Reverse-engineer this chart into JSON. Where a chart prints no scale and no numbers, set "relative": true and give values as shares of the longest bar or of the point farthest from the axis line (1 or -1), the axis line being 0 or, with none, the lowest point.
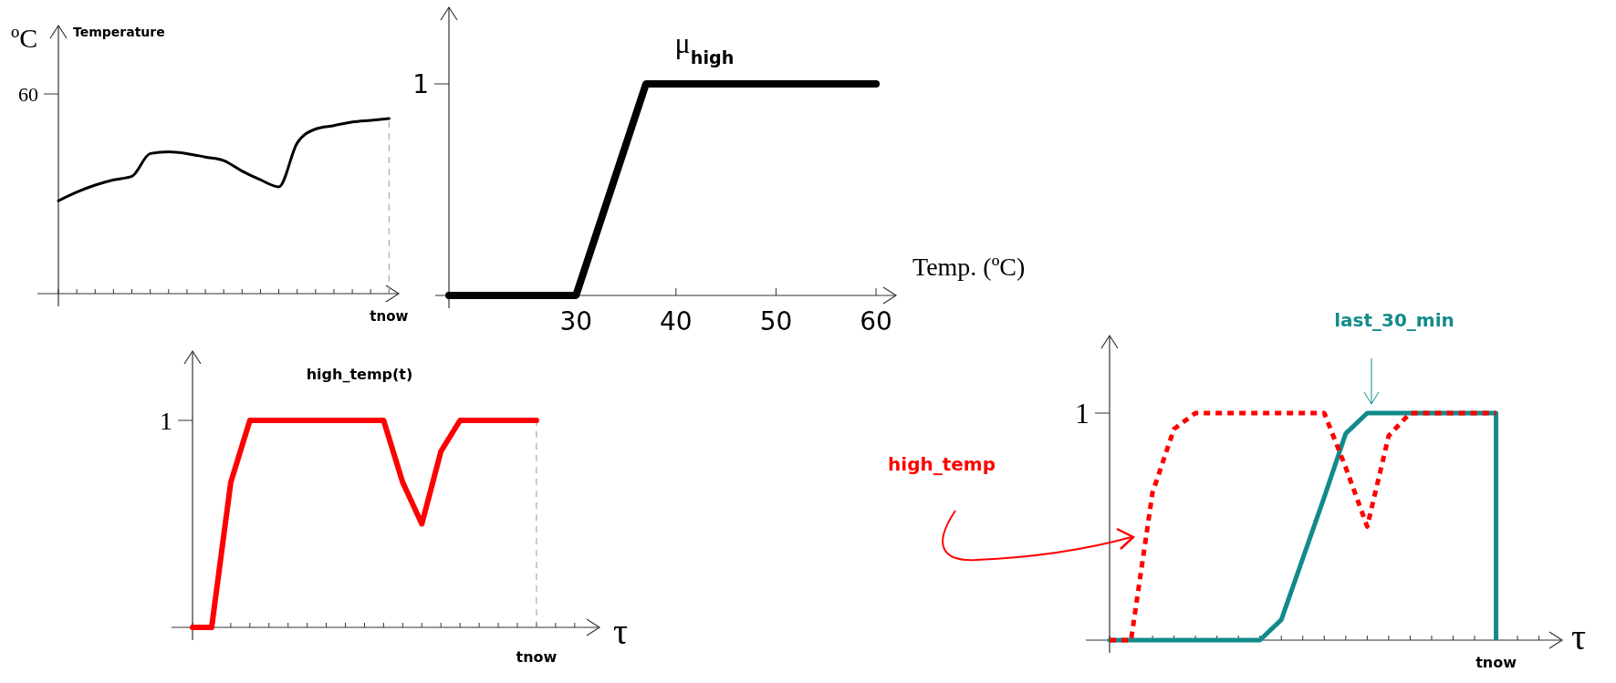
{
  "chart_data": [
    {
      "type": "line",
      "title": "Temperature",
      "ylabel": "ºC",
      "relative": true,
      "categories": [
        null,
        null,
        null,
        null,
        null,
        null,
        null,
        null,
        null,
        null,
        null,
        null,
        null,
        null,
        null,
        null,
        null,
        null,
        null
      ],
      "annotations": [
        "60"
      ],
      "ref_lines": [
        {
          "axis": "x",
          "label": "tnow",
          "color": "#999999",
          "line_style": "dotted"
        }
      ],
      "series": [
        {
          "color": "#000000",
          "values": [
            0.53,
            0.58,
            0.62,
            0.65,
            0.67,
            0.8,
            0.81,
            0.8,
            0.78,
            0.76,
            0.7,
            0.65,
            0.61,
            0.86,
            0.94,
            0.96,
            0.98,
            0.99,
            1
          ]
        }
      ]
    },
    {
      "type": "line",
      "title": "μ$_{high}$",
      "xlabel": "Temp. (ºC)",
      "relative": true,
      "xlim": [
        17.3,
        62
      ],
      "xticks": [
        30,
        40,
        50,
        60
      ],
      "annotations": [
        "1"
      ],
      "series": [
        {
          "color": "#000000",
          "x": [
            17.3,
            30,
            37,
            60
          ],
          "values": [
            0,
            0,
            1,
            1
          ]
        }
      ]
    },
    {
      "type": "line",
      "title": "high_temp(t)",
      "xlabel": "τ",
      "relative": true,
      "categories": [
        null,
        null,
        null,
        null,
        null,
        null,
        null,
        null,
        null,
        null,
        null,
        null,
        null,
        null,
        null,
        null,
        null,
        null,
        null,
        null,
        null
      ],
      "annotations": [
        "1"
      ],
      "ref_lines": [
        {
          "axis": "x",
          "label": "tnow",
          "color": "#999999",
          "line_style": "dotted"
        }
      ],
      "series": [
        {
          "color": "#ff0000",
          "values": [
            0,
            0,
            0.7,
            1,
            1,
            1,
            1,
            1,
            1,
            1,
            1,
            0.7,
            0.5,
            0.85,
            1,
            1,
            1,
            1,
            1,
            null,
            null
          ]
        }
      ]
    },
    {
      "type": "line",
      "xlabel": "τ",
      "relative": true,
      "categories": [
        null,
        null,
        null,
        null,
        null,
        null,
        null,
        null,
        null,
        null,
        null,
        null,
        null,
        null,
        null,
        null,
        null,
        null,
        null,
        null,
        null
      ],
      "annotations": [
        "1"
      ],
      "ref_lines": [
        {
          "axis": "x",
          "label": "tnow",
          "color": "#138a8a"
        }
      ],
      "series": [
        {
          "name": "high_temp",
          "color": "#ff0000",
          "line_style": "dotted",
          "values": [
            0,
            0,
            0.65,
            0.93,
            1,
            1,
            1,
            1,
            1,
            1,
            1,
            0.76,
            0.5,
            0.9,
            1,
            1,
            1,
            1,
            1,
            null,
            null
          ]
        },
        {
          "name": "last_30_min",
          "color": "#138a8a",
          "values": [
            0,
            0,
            0,
            0,
            0,
            0,
            0,
            0,
            0.09,
            0.36,
            0.63,
            0.91,
            1,
            1,
            1,
            1,
            1,
            1,
            1,
            null,
            null
          ]
        }
      ]
    }
  ]
}
